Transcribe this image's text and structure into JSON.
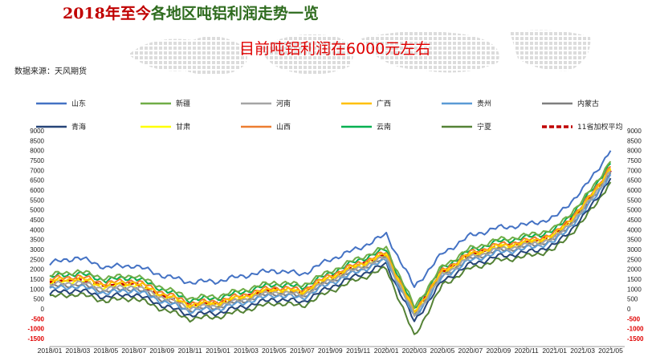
{
  "header": {
    "title_red": "2018年至今",
    "title_green": "各地区吨铝利润走势一览",
    "subtitle": "目前吨铝利润在6000元左右",
    "source": "数据来源：天风期货"
  },
  "colors": {
    "title_red": "#c00000",
    "title_green": "#2e6b1e",
    "subtitle": "#e00000",
    "negative_tick": "#e00000"
  },
  "chart_data": {
    "type": "line",
    "x": [
      "2018/01",
      "2018/03",
      "2018/05",
      "2018/07",
      "2018/09",
      "2018/11",
      "2019/01",
      "2019/03",
      "2019/05",
      "2019/07",
      "2019/09",
      "2019/11",
      "2020/01",
      "2020/03",
      "2020/05",
      "2020/07",
      "2020/09",
      "2020/11",
      "2021/01",
      "2021/03",
      "2021/05"
    ],
    "xlim": [
      "2018/01",
      "2021/06"
    ],
    "ylim": [
      -1500,
      9000
    ],
    "yticks": [
      -1500,
      -1000,
      -500,
      0,
      500,
      1000,
      1500,
      2000,
      2500,
      3000,
      3500,
      4000,
      4500,
      5000,
      5500,
      6000,
      6500,
      7000,
      7500,
      8000,
      8500,
      9000
    ],
    "ytick_labels": [
      "-1500",
      "-1000",
      "-500",
      "0",
      "500",
      "1000",
      "1500",
      "2000",
      "2500",
      "3000",
      "3500",
      "4000",
      "4500",
      "5000",
      "5500",
      "6000",
      "6500",
      "7000",
      "7500",
      "8000",
      "8500",
      "9000"
    ],
    "xtick_labels": [
      "2018/01",
      "2018/03",
      "2018/05",
      "2018/07",
      "2018/09",
      "2018/11",
      "2019/01",
      "2019/03",
      "2019/05",
      "2019/07",
      "2019/09",
      "2019/11",
      "2020/01",
      "2020/03",
      "2020/05",
      "2020/07",
      "2020/09",
      "2020/11",
      "2021/01",
      "2021/03",
      "2021/05"
    ],
    "dual_y_axis": true,
    "negative_tick_color": "#e00000",
    "grid": false,
    "legend_position": "top",
    "series": [
      {
        "name": "山东",
        "color": "#4472c4",
        "width": 2,
        "dash": false,
        "values": [
          2300,
          2600,
          2100,
          2200,
          1700,
          1350,
          1400,
          1700,
          1950,
          1750,
          2500,
          3050,
          3750,
          1100,
          2800,
          3700,
          4100,
          4250,
          4600,
          6000,
          8000
        ]
      },
      {
        "name": "新疆",
        "color": "#70ad47",
        "width": 2,
        "dash": false,
        "values": [
          1700,
          1900,
          1550,
          1700,
          1100,
          550,
          650,
          1000,
          1350,
          1200,
          1900,
          2550,
          3100,
          100,
          2150,
          3050,
          3500,
          3700,
          4050,
          5450,
          7450
        ]
      },
      {
        "name": "河南",
        "color": "#a5a5a5",
        "width": 2,
        "dash": false,
        "values": [
          1200,
          1350,
          1000,
          1150,
          600,
          50,
          150,
          500,
          850,
          700,
          1450,
          2050,
          2600,
          -350,
          1700,
          2600,
          3000,
          3200,
          3550,
          4950,
          6950
        ]
      },
      {
        "name": "广西",
        "color": "#ffc000",
        "width": 2,
        "dash": false,
        "values": [
          1400,
          1550,
          1200,
          1350,
          750,
          200,
          300,
          650,
          1000,
          850,
          1600,
          2200,
          2750,
          -200,
          1850,
          2750,
          3150,
          3350,
          3700,
          5100,
          7100
        ]
      },
      {
        "name": "贵州",
        "color": "#5b9bd5",
        "width": 2,
        "dash": false,
        "values": [
          1000,
          1150,
          800,
          950,
          400,
          -100,
          0,
          350,
          700,
          550,
          1300,
          1900,
          2450,
          -450,
          1600,
          2450,
          2850,
          3050,
          3400,
          4800,
          6800
        ]
      },
      {
        "name": "内蒙古",
        "color": "#7f7f7f",
        "width": 2,
        "dash": false,
        "values": [
          1100,
          1250,
          900,
          1050,
          500,
          -50,
          100,
          450,
          800,
          650,
          1400,
          2000,
          2550,
          -400,
          1650,
          2550,
          2950,
          3150,
          3500,
          4900,
          6900
        ]
      },
      {
        "name": "青海",
        "color": "#264478",
        "width": 2,
        "dash": false,
        "values": [
          800,
          950,
          600,
          750,
          200,
          -300,
          -200,
          150,
          500,
          350,
          1100,
          1700,
          2250,
          -650,
          1400,
          2250,
          2650,
          2850,
          3200,
          4600,
          6600
        ]
      },
      {
        "name": "甘肃",
        "color": "#ffff00",
        "width": 2,
        "dash": false,
        "values": [
          1300,
          1450,
          1100,
          1250,
          650,
          150,
          250,
          600,
          950,
          800,
          1550,
          2150,
          2700,
          -250,
          1800,
          2700,
          3100,
          3300,
          3650,
          5050,
          7050
        ]
      },
      {
        "name": "山西",
        "color": "#ed7d31",
        "width": 2,
        "dash": false,
        "values": [
          1500,
          1650,
          1300,
          1450,
          850,
          300,
          400,
          750,
          1100,
          950,
          1700,
          2300,
          2850,
          -150,
          1950,
          2850,
          3250,
          3450,
          3800,
          5200,
          7200
        ]
      },
      {
        "name": "云南",
        "color": "#00b050",
        "width": 2,
        "dash": false,
        "values": [
          1600,
          1800,
          1450,
          1600,
          1000,
          450,
          550,
          900,
          1250,
          1100,
          1800,
          2450,
          3000,
          0,
          2050,
          2950,
          3400,
          3600,
          3950,
          5350,
          7350
        ]
      },
      {
        "name": "宁夏",
        "color": "#548235",
        "width": 2,
        "dash": false,
        "values": [
          600,
          750,
          400,
          550,
          0,
          -500,
          -400,
          -50,
          300,
          150,
          900,
          1500,
          2050,
          -1400,
          1200,
          2050,
          2450,
          2650,
          3000,
          4400,
          6400
        ]
      },
      {
        "name": "11省加权平均",
        "color": "#c00000",
        "width": 3.5,
        "dash": true,
        "values": [
          1350,
          1500,
          1150,
          1300,
          700,
          200,
          300,
          650,
          1000,
          850,
          1600,
          2200,
          2750,
          -250,
          1850,
          2750,
          3150,
          3350,
          3700,
          5100,
          7000
        ]
      }
    ]
  }
}
